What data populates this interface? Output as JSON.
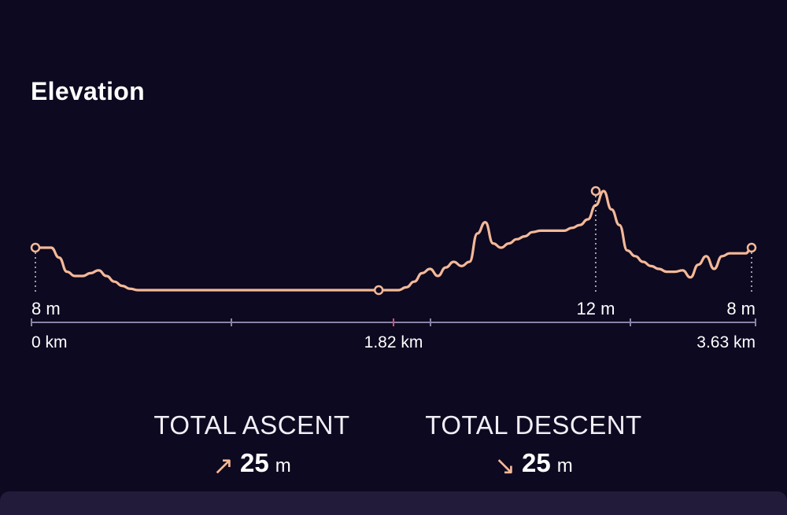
{
  "section": {
    "title": "Elevation"
  },
  "chart_data": {
    "type": "line",
    "title": "Elevation",
    "x": [
      0,
      0.04,
      0.08,
      0.12,
      0.16,
      0.2,
      0.24,
      0.28,
      0.32,
      0.36,
      0.4,
      0.44,
      0.48,
      0.52,
      0.56,
      0.6,
      0.64,
      0.68,
      0.72,
      0.76,
      0.8,
      0.84,
      0.88,
      0.92,
      0.96,
      1.0,
      1.04,
      1.08,
      1.12,
      1.16,
      1.2,
      1.24,
      1.28,
      1.32,
      1.36,
      1.4,
      1.44,
      1.48,
      1.52,
      1.56,
      1.6,
      1.64,
      1.68,
      1.72,
      1.76,
      1.8,
      1.84,
      1.88,
      1.92,
      1.96,
      2.0,
      2.04,
      2.08,
      2.12,
      2.16,
      2.2,
      2.24,
      2.28,
      2.32,
      2.36,
      2.4,
      2.44,
      2.48,
      2.52,
      2.56,
      2.6,
      2.64,
      2.68,
      2.72,
      2.76,
      2.8,
      2.84,
      2.88,
      2.92,
      2.96,
      3.0,
      3.04,
      3.08,
      3.12,
      3.16,
      3.2,
      3.24,
      3.28,
      3.32,
      3.36,
      3.4,
      3.44,
      3.48,
      3.52,
      3.56,
      3.6,
      3.63
    ],
    "y": [
      8,
      8,
      8,
      7.3,
      6.3,
      6.0,
      6.0,
      6.2,
      6.4,
      6.0,
      5.6,
      5.3,
      5.1,
      5.0,
      5.0,
      5.0,
      5.0,
      5.0,
      5.0,
      5.0,
      5.0,
      5.0,
      5.0,
      5.0,
      5.0,
      5.0,
      5.0,
      5.0,
      5.0,
      5.0,
      5.0,
      5.0,
      5.0,
      5.0,
      5.0,
      5.0,
      5.0,
      5.0,
      5.0,
      5.0,
      5.0,
      5.0,
      5.0,
      5.0,
      5.0,
      5.0,
      5.0,
      5.2,
      5.6,
      6.2,
      6.5,
      6.0,
      6.6,
      7.0,
      6.7,
      7.0,
      9.0,
      9.8,
      8.3,
      8.0,
      8.3,
      8.6,
      8.8,
      9.1,
      9.2,
      9.2,
      9.2,
      9.2,
      9.4,
      9.6,
      10.0,
      11.0,
      12.0,
      10.7,
      9.6,
      7.8,
      7.4,
      7.0,
      6.7,
      6.5,
      6.3,
      6.3,
      6.4,
      5.9,
      6.8,
      7.4,
      6.5,
      7.4,
      7.6,
      7.6,
      7.6,
      8.0
    ],
    "xlabel": "",
    "ylabel": "",
    "xlim": [
      0,
      3.63
    ],
    "ylim": [
      5,
      12
    ],
    "x_tick_labels": [
      "0 km",
      "1.82 km",
      "3.63 km"
    ],
    "markers": [
      {
        "x": 0,
        "y": 8,
        "label": "8 m"
      },
      {
        "x": 1.74,
        "y": 5,
        "label": ""
      },
      {
        "x": 2.84,
        "y": 12,
        "label": "12 m"
      },
      {
        "x": 3.63,
        "y": 8,
        "label": "8 m"
      }
    ],
    "colors": {
      "line": "#f4b998",
      "axis": "#8a83a8",
      "midTick": "#e0487a",
      "guide": "#ffffff"
    },
    "grid": false
  },
  "stats": {
    "ascent": {
      "label": "TOTAL ASCENT",
      "icon": "arrow-up-right-icon",
      "glyph": "↗",
      "value": "25",
      "unit": "m"
    },
    "descent": {
      "label": "TOTAL DESCENT",
      "icon": "arrow-down-right-icon",
      "glyph": "↘",
      "value": "25",
      "unit": "m"
    }
  }
}
